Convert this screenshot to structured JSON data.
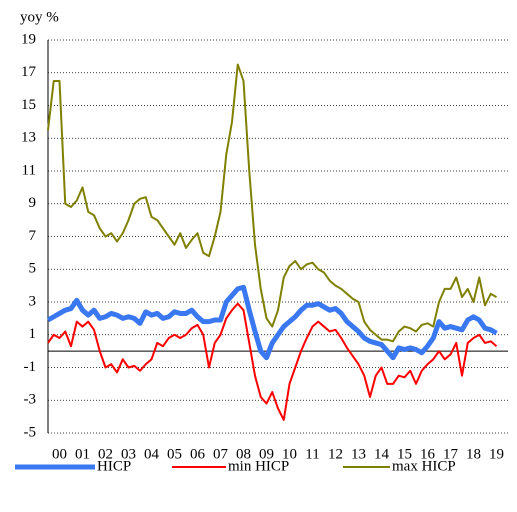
{
  "chart_data": {
    "type": "line",
    "ylabel": "yoy %",
    "x": [
      2000,
      2000.25,
      2000.5,
      2000.75,
      2001,
      2001.25,
      2001.5,
      2001.75,
      2002,
      2002.25,
      2002.5,
      2002.75,
      2003,
      2003.25,
      2003.5,
      2003.75,
      2004,
      2004.25,
      2004.5,
      2004.75,
      2005,
      2005.25,
      2005.5,
      2005.75,
      2006,
      2006.25,
      2006.5,
      2006.75,
      2007,
      2007.25,
      2007.5,
      2007.75,
      2008,
      2008.25,
      2008.5,
      2008.75,
      2009,
      2009.25,
      2009.5,
      2009.75,
      2010,
      2010.25,
      2010.5,
      2010.75,
      2011,
      2011.25,
      2011.5,
      2011.75,
      2012,
      2012.25,
      2012.5,
      2012.75,
      2013,
      2013.25,
      2013.5,
      2013.75,
      2014,
      2014.25,
      2014.5,
      2014.75,
      2015,
      2015.25,
      2015.5,
      2015.75,
      2016,
      2016.25,
      2016.5,
      2016.75,
      2017,
      2017.25,
      2017.5,
      2017.75,
      2018,
      2018.25,
      2018.5,
      2018.75,
      2019,
      2019.25,
      2019.5
    ],
    "series": [
      {
        "name": "HICP",
        "color": "#3a78f2",
        "width": 5,
        "values": [
          1.9,
          2.1,
          2.3,
          2.5,
          2.6,
          3.1,
          2.5,
          2.2,
          2.5,
          2.0,
          2.1,
          2.3,
          2.2,
          2.0,
          2.1,
          2.0,
          1.7,
          2.4,
          2.2,
          2.3,
          2.0,
          2.1,
          2.4,
          2.3,
          2.3,
          2.5,
          2.1,
          1.8,
          1.8,
          1.9,
          1.9,
          3.0,
          3.4,
          3.8,
          3.9,
          2.5,
          1.2,
          0.0,
          -0.4,
          0.5,
          1.0,
          1.5,
          1.8,
          2.1,
          2.5,
          2.8,
          2.8,
          2.9,
          2.7,
          2.5,
          2.6,
          2.3,
          1.8,
          1.5,
          1.2,
          0.8,
          0.6,
          0.5,
          0.4,
          0.0,
          -0.4,
          0.2,
          0.1,
          0.2,
          0.1,
          -0.1,
          0.3,
          0.8,
          1.8,
          1.4,
          1.5,
          1.4,
          1.3,
          1.9,
          2.1,
          1.9,
          1.4,
          1.3,
          1.1
        ]
      },
      {
        "name": "min HICP",
        "color": "#ff0000",
        "width": 2,
        "values": [
          0.5,
          1.0,
          0.8,
          1.2,
          0.3,
          1.8,
          1.5,
          1.8,
          1.3,
          0.0,
          -1.0,
          -0.8,
          -1.3,
          -0.5,
          -1.0,
          -0.9,
          -1.2,
          -0.8,
          -0.5,
          0.5,
          0.3,
          0.8,
          1.0,
          0.8,
          1.0,
          1.4,
          1.6,
          1.0,
          -1.0,
          0.5,
          1.0,
          2.0,
          2.5,
          2.9,
          2.5,
          0.5,
          -1.5,
          -2.8,
          -3.2,
          -2.5,
          -3.5,
          -4.2,
          -2.0,
          -1.0,
          0.0,
          0.8,
          1.5,
          1.8,
          1.5,
          1.2,
          1.3,
          0.8,
          0.2,
          -0.3,
          -0.8,
          -1.5,
          -2.8,
          -1.5,
          -1.0,
          -2.0,
          -2.0,
          -1.5,
          -1.6,
          -1.2,
          -2.0,
          -1.2,
          -0.8,
          -0.5,
          0.0,
          -0.5,
          -0.2,
          0.5,
          -1.5,
          0.5,
          0.8,
          1.0,
          0.5,
          0.6,
          0.3
        ]
      },
      {
        "name": "max HICP",
        "color": "#808000",
        "width": 2,
        "values": [
          13.5,
          16.5,
          16.5,
          9.0,
          8.8,
          9.2,
          10.0,
          8.5,
          8.3,
          7.5,
          7.0,
          7.2,
          6.7,
          7.2,
          8.0,
          9.0,
          9.3,
          9.4,
          8.2,
          8.0,
          7.5,
          7.0,
          6.5,
          7.2,
          6.3,
          6.8,
          7.2,
          6.0,
          5.8,
          7.0,
          8.5,
          12.0,
          14.0,
          17.5,
          16.5,
          11.0,
          6.5,
          3.8,
          2.0,
          1.5,
          2.5,
          4.5,
          5.2,
          5.5,
          5.0,
          5.3,
          5.4,
          5.0,
          4.8,
          4.3,
          4.0,
          3.8,
          3.5,
          3.2,
          3.0,
          1.8,
          1.3,
          1.0,
          0.7,
          0.7,
          0.6,
          1.2,
          1.5,
          1.4,
          1.2,
          1.6,
          1.7,
          1.5,
          3.0,
          3.8,
          3.8,
          4.5,
          3.3,
          3.8,
          3.0,
          4.5,
          2.8,
          3.5,
          3.3
        ]
      }
    ],
    "xlim": [
      2000,
      2020
    ],
    "xticks": [
      {
        "value": 2000.5,
        "label": "00"
      },
      {
        "value": 2001.5,
        "label": "01"
      },
      {
        "value": 2002.5,
        "label": "02"
      },
      {
        "value": 2003.5,
        "label": "03"
      },
      {
        "value": 2004.5,
        "label": "04"
      },
      {
        "value": 2005.5,
        "label": "05"
      },
      {
        "value": 2006.5,
        "label": "06"
      },
      {
        "value": 2007.5,
        "label": "07"
      },
      {
        "value": 2008.5,
        "label": "08"
      },
      {
        "value": 2009.5,
        "label": "09"
      },
      {
        "value": 2010.5,
        "label": "10"
      },
      {
        "value": 2011.5,
        "label": "11"
      },
      {
        "value": 2012.5,
        "label": "12"
      },
      {
        "value": 2013.5,
        "label": "13"
      },
      {
        "value": 2014.5,
        "label": "14"
      },
      {
        "value": 2015.5,
        "label": "15"
      },
      {
        "value": 2016.5,
        "label": "16"
      },
      {
        "value": 2017.5,
        "label": "17"
      },
      {
        "value": 2018.5,
        "label": "18"
      },
      {
        "value": 2019.5,
        "label": "19"
      }
    ],
    "ylim": [
      -5,
      19
    ],
    "yticks": [
      -5,
      -3,
      -1,
      1,
      3,
      5,
      7,
      9,
      11,
      13,
      15,
      17,
      19
    ],
    "grid": true,
    "legend": "bottom"
  }
}
